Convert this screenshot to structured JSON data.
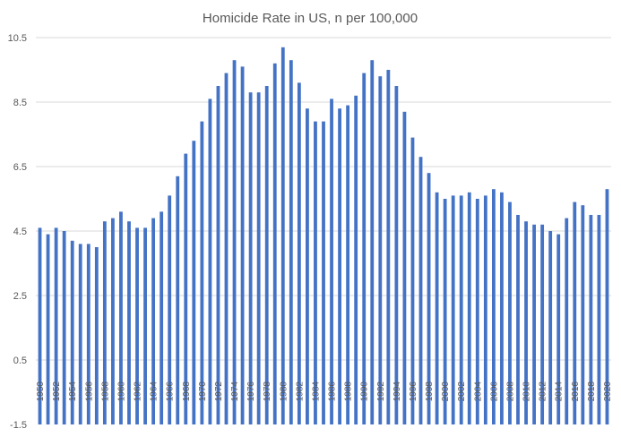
{
  "chart_data": {
    "type": "bar",
    "title": "Homicide Rate in US, n per 100,000",
    "xlabel": "",
    "ylabel": "",
    "ylim": [
      -1.5,
      10.5
    ],
    "yticks": [
      "10.5",
      "8.5",
      "6.5",
      "4.5",
      "2.5",
      "0.5",
      "-1.5"
    ],
    "grid": true,
    "legend": "none",
    "bar_color": "#4472c4",
    "gridline_color": "#d9d9d9",
    "text_color": "#595959",
    "categories": [
      1950,
      1951,
      1952,
      1953,
      1954,
      1955,
      1956,
      1957,
      1958,
      1959,
      1960,
      1961,
      1962,
      1963,
      1964,
      1965,
      1966,
      1967,
      1968,
      1969,
      1970,
      1971,
      1972,
      1973,
      1974,
      1975,
      1976,
      1977,
      1978,
      1979,
      1980,
      1981,
      1982,
      1983,
      1984,
      1985,
      1986,
      1987,
      1988,
      1989,
      1990,
      1991,
      1992,
      1993,
      1994,
      1995,
      1996,
      1997,
      1998,
      1999,
      2000,
      2001,
      2002,
      2003,
      2004,
      2005,
      2006,
      2007,
      2008,
      2009,
      2010,
      2011,
      2012,
      2013,
      2014,
      2015,
      2016,
      2017,
      2018,
      2019,
      2020
    ],
    "x_tick_labels": [
      "1950",
      "1952",
      "1954",
      "1956",
      "1958",
      "1960",
      "1962",
      "1964",
      "1966",
      "1968",
      "1970",
      "1972",
      "1974",
      "1976",
      "1978",
      "1980",
      "1982",
      "1984",
      "1986",
      "1988",
      "1990",
      "1992",
      "1994",
      "1996",
      "1998",
      "2000",
      "2002",
      "2004",
      "2006",
      "2008",
      "2010",
      "2012",
      "2014",
      "2016",
      "2018",
      "2020"
    ],
    "values": [
      4.6,
      4.4,
      4.6,
      4.5,
      4.2,
      4.1,
      4.1,
      4.0,
      4.8,
      4.9,
      5.1,
      4.8,
      4.6,
      4.6,
      4.9,
      5.1,
      5.6,
      6.2,
      6.9,
      7.3,
      7.9,
      8.6,
      9.0,
      9.4,
      9.8,
      9.6,
      8.8,
      8.8,
      9.0,
      9.7,
      10.2,
      9.8,
      9.1,
      8.3,
      7.9,
      7.9,
      8.6,
      8.3,
      8.4,
      8.7,
      9.4,
      9.8,
      9.3,
      9.5,
      9.0,
      8.2,
      7.4,
      6.8,
      6.3,
      5.7,
      5.5,
      5.6,
      5.6,
      5.7,
      5.5,
      5.6,
      5.8,
      5.7,
      5.4,
      5.0,
      4.8,
      4.7,
      4.7,
      4.5,
      4.4,
      4.9,
      5.4,
      5.3,
      5.0,
      5.0,
      5.8
    ]
  }
}
